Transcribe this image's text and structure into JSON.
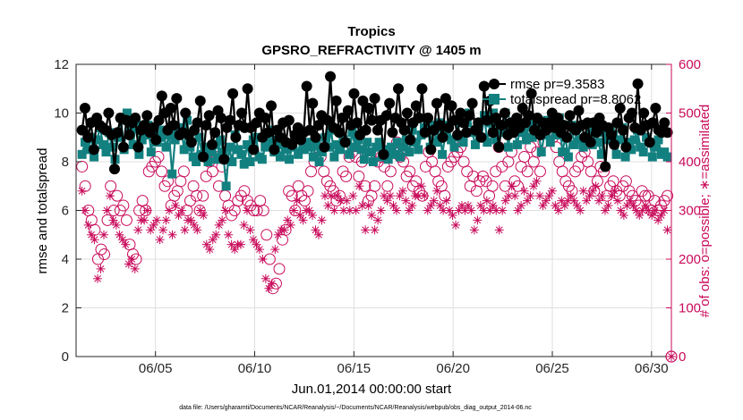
{
  "chart_data": {
    "type": "line",
    "title": "Tropics",
    "subtitle": "GPSRO_REFRACTIVITY @ 1405 m",
    "xlabel": "Jun.01,2014 00:00:00 start",
    "ylabel": "rmse and totalspread",
    "ylabel_right": "# of obs: o=possible; ∗=assimilated",
    "footer": "data file: /Users/gharamti/Documents/NCAR/Reanalysis/~/Documents/NCAR/Reanalysis/webpub/obs_diag_output_2014-06.nc",
    "x_ticks": [
      "06/05",
      "06/10",
      "06/15",
      "06/20",
      "06/25",
      "06/30"
    ],
    "x_tick_days": [
      5,
      10,
      15,
      20,
      25,
      30
    ],
    "xlim": [
      1,
      31
    ],
    "ylim": [
      0,
      12
    ],
    "y_ticks": [
      "0",
      "2",
      "4",
      "6",
      "8",
      "10",
      "12"
    ],
    "ylim_right": [
      0,
      600
    ],
    "y_ticks_right": [
      "0",
      "100",
      "200",
      "300",
      "400",
      "500",
      "600"
    ],
    "grid": true,
    "legend_position": "top-right",
    "colors": {
      "rmse": "#000000",
      "spread": "#138080",
      "counts": "#c80a5a"
    },
    "series": [
      {
        "name": "rmse pr=9.3583",
        "axis": "left",
        "marker": "circle",
        "values": [
          9.3,
          10.2,
          9.0,
          9.6,
          8.5,
          9.8,
          9.5,
          9.4,
          9.3,
          10.0,
          9.1,
          7.7,
          9.2,
          9.8,
          8.6,
          9.7,
          9.1,
          9.6,
          9.8,
          8.6,
          9.3,
          9.5,
          9.9,
          9.2,
          9.4,
          8.9,
          9.7,
          10.7,
          10.0,
          9.3,
          10.2,
          9.5,
          10.6,
          9.1,
          9.2,
          10.0,
          9.1,
          8.8,
          9.3,
          9.6,
          10.5,
          8.2,
          9.5,
          9.9,
          8.7,
          9.2,
          10.1,
          9.8,
          8.1,
          9.4,
          9.7,
          10.8,
          9.0,
          9.5,
          10.0,
          9.4,
          11.0,
          9.4,
          8.5,
          9.6,
          10.0,
          9.0,
          9.8,
          9.2,
          10.3,
          8.5,
          9.3,
          9.0,
          9.6,
          8.8,
          9.7,
          8.7,
          9.1,
          9.4,
          8.9,
          9.2,
          11.1,
          9.3,
          10.4,
          9.0,
          9.5,
          9.9,
          8.6,
          9.7,
          11.5,
          9.4,
          10.5,
          9.2,
          9.8,
          8.8,
          10.1,
          9.5,
          10.8,
          9.6,
          9.1,
          10.5,
          9.3,
          10.2,
          9.7,
          10.6,
          9.3,
          9.7,
          8.3,
          9.9,
          10.4,
          9.2,
          9.8,
          11.0,
          9.6,
          9.3,
          10.0,
          8.9,
          9.6,
          10.3,
          9.8,
          11.0,
          9.2,
          9.8,
          8.5,
          9.3,
          10.4,
          9.5,
          9.0,
          10.6,
          9.4,
          10.3,
          9.7,
          9.1,
          10.0,
          9.6,
          9.2,
          9.9,
          10.4,
          9.3,
          9.6,
          9.0,
          11.1,
          9.7,
          10.5,
          9.2,
          9.8,
          8.6,
          9.5,
          10.0,
          9.1,
          9.6,
          9.2,
          9.8,
          9.4,
          10.2,
          9.6,
          9.9,
          10.8,
          9.3,
          9.8,
          9.1,
          9.6,
          9.3,
          9.6,
          10.0,
          9.4,
          9.8,
          9.2,
          9.5,
          9.0,
          9.9,
          9.4,
          9.3,
          10.1,
          9.5,
          9.0,
          9.6,
          8.8,
          9.6,
          9.2,
          9.8,
          9.5,
          7.8,
          9.4,
          9.1,
          8.7,
          9.6,
          10.2,
          9.3,
          8.6,
          9.8,
          10.0,
          9.4,
          11.2,
          9.3,
          10.0,
          9.5,
          8.8,
          9.6,
          10.2,
          9.3,
          9.2,
          9.6,
          9.2
        ]
      },
      {
        "name": "totalspread pr=8.8062",
        "axis": "left",
        "marker": "square",
        "values": [
          8.3,
          8.8,
          8.5,
          9.0,
          8.2,
          8.9,
          9.4,
          8.7,
          8.4,
          9.2,
          8.6,
          8.1,
          9.0,
          9.8,
          8.5,
          10.0,
          9.3,
          8.7,
          9.6,
          8.3,
          8.9,
          9.1,
          9.5,
          8.4,
          9.3,
          8.8,
          9.0,
          9.3,
          8.6,
          9.1,
          7.5,
          8.9,
          9.2,
          9.4,
          8.5,
          9.7,
          8.6,
          8.2,
          8.0,
          9.0,
          8.3,
          8.6,
          8.0,
          8.4,
          8.7,
          8.1,
          8.9,
          8.4,
          7.0,
          8.6,
          8.0,
          9.1,
          8.5,
          8.3,
          7.9,
          8.7,
          8.0,
          8.9,
          9.0,
          8.2,
          8.1,
          8.6,
          8.8,
          9.3,
          8.4,
          8.9,
          8.2,
          8.7,
          8.5,
          8.1,
          8.6,
          8.9,
          8.3,
          9.1,
          8.5,
          8.8,
          8.6,
          8.2,
          8.7,
          8.0,
          8.4,
          9.0,
          8.6,
          9.3,
          8.2,
          8.7,
          8.5,
          8.9,
          8.8,
          8.3,
          9.2,
          8.6,
          8.9,
          8.5,
          8.1,
          8.8,
          8.4,
          8.0,
          8.6,
          8.8,
          8.2,
          8.5,
          8.1,
          8.6,
          8.3,
          8.8,
          8.2,
          8.6,
          8.9,
          8.4,
          9.3,
          8.8,
          8.5,
          9.1,
          9.4,
          9.6,
          8.6,
          9.5,
          8.8,
          9.6,
          8.3,
          9.1,
          9.5,
          8.9,
          8.6,
          9.7,
          9.0,
          8.8,
          9.6,
          10.0,
          9.2,
          8.7,
          9.4,
          9.0,
          9.9,
          8.8,
          9.6,
          10.0,
          8.9,
          9.4,
          9.2,
          10.0,
          8.6,
          9.5,
          9.3,
          8.7,
          9.5,
          9.2,
          8.9,
          9.6,
          9.0,
          9.6,
          9.3,
          8.4,
          9.1,
          9.7,
          8.8,
          9.4,
          9.1,
          9.8,
          8.4,
          9.0,
          8.2,
          9.5,
          8.7,
          9.4,
          8.9,
          8.6,
          9.0,
          9.6,
          8.7,
          9.5,
          8.8,
          8.3,
          9.2,
          8.9,
          9.4,
          9.1,
          8.3,
          8.9,
          9.4,
          8.2,
          8.8,
          8.5,
          8.9,
          9.3,
          8.6,
          8.4,
          9.0,
          8.8,
          8.2,
          8.6,
          8.9,
          8.3,
          8.4,
          8.2
        ]
      },
      {
        "name": "# of obs possible",
        "axis": "right",
        "marker": "open-circle",
        "values": [
          390,
          350,
          300,
          280,
          260,
          200,
          220,
          210,
          280,
          350,
          300,
          330,
          300,
          310,
          280,
          230,
          210,
          200,
          300,
          320,
          300,
          380,
          390,
          400,
          410,
          380,
          350,
          360,
          310,
          330,
          340,
          360,
          380,
          300,
          320,
          350,
          330,
          300,
          330,
          370,
          400,
          380,
          410,
          350,
          390,
          330,
          310,
          290,
          300,
          320,
          330,
          340,
          320,
          310,
          300,
          300,
          320,
          300,
          250,
          200,
          140,
          150,
          180,
          240,
          260,
          340,
          330,
          300,
          350,
          330,
          320,
          340,
          380,
          400,
          430,
          410,
          380,
          360,
          350,
          340,
          320,
          330,
          380,
          370,
          410,
          420,
          410,
          370,
          400,
          350,
          320,
          330,
          350,
          400,
          410,
          390,
          350,
          380,
          420,
          440,
          410,
          400,
          370,
          380,
          350,
          360,
          340,
          330,
          390,
          420,
          400,
          380,
          360,
          350,
          330,
          390,
          400,
          410,
          420,
          430,
          400,
          380,
          350,
          370,
          340,
          360,
          370,
          360,
          330,
          350,
          380,
          430,
          390,
          350,
          400,
          420,
          360,
          350,
          390,
          410,
          380,
          430,
          400,
          420,
          380,
          440,
          460,
          480,
          450,
          430,
          400,
          380,
          360,
          350,
          340,
          380,
          390,
          410,
          420,
          400,
          380,
          340,
          360,
          390,
          380,
          330,
          350,
          360,
          340,
          330,
          350,
          360,
          340,
          330,
          320,
          310,
          340,
          330,
          330,
          300,
          320,
          300,
          310,
          320,
          330
        ]
      },
      {
        "name": "# of obs assimilated",
        "axis": "right",
        "marker": "asterisk",
        "values": [
          340,
          300,
          270,
          250,
          240,
          160,
          180,
          250,
          300,
          330,
          280,
          270,
          250,
          240,
          230,
          190,
          200,
          180,
          260,
          280,
          280,
          300,
          260,
          270,
          280,
          240,
          260,
          280,
          300,
          250,
          310,
          290,
          300,
          260,
          280,
          280,
          270,
          260,
          300,
          290,
          230,
          220,
          240,
          250,
          270,
          280,
          300,
          250,
          230,
          220,
          230,
          230,
          270,
          300,
          260,
          240,
          230,
          220,
          200,
          160,
          140,
          150,
          220,
          250,
          260,
          260,
          280,
          270,
          300,
          320,
          290,
          280,
          300,
          300,
          290,
          260,
          250,
          280,
          330,
          310,
          330,
          300,
          330,
          320,
          300,
          320,
          300,
          330,
          300,
          350,
          310,
          260,
          310,
          290,
          260,
          280,
          300,
          330,
          320,
          330,
          310,
          300,
          330,
          340,
          320,
          300,
          310,
          330,
          330,
          350,
          330,
          300,
          310,
          320,
          340,
          310,
          300,
          320,
          300,
          290,
          270,
          300,
          310,
          300,
          310,
          300,
          260,
          280,
          310,
          300,
          320,
          300,
          310,
          300,
          260,
          300,
          320,
          330,
          350,
          330,
          300,
          310,
          340,
          320,
          330,
          350,
          360,
          330,
          310,
          320,
          330,
          340,
          310,
          300,
          320,
          310,
          320,
          330,
          320,
          310,
          300,
          340,
          320,
          330,
          340,
          350,
          320,
          330,
          300,
          310,
          330,
          340,
          320,
          300,
          290,
          310,
          320,
          310,
          300,
          290,
          300,
          310,
          300,
          290,
          300,
          280,
          290,
          300,
          260
        ]
      }
    ]
  }
}
